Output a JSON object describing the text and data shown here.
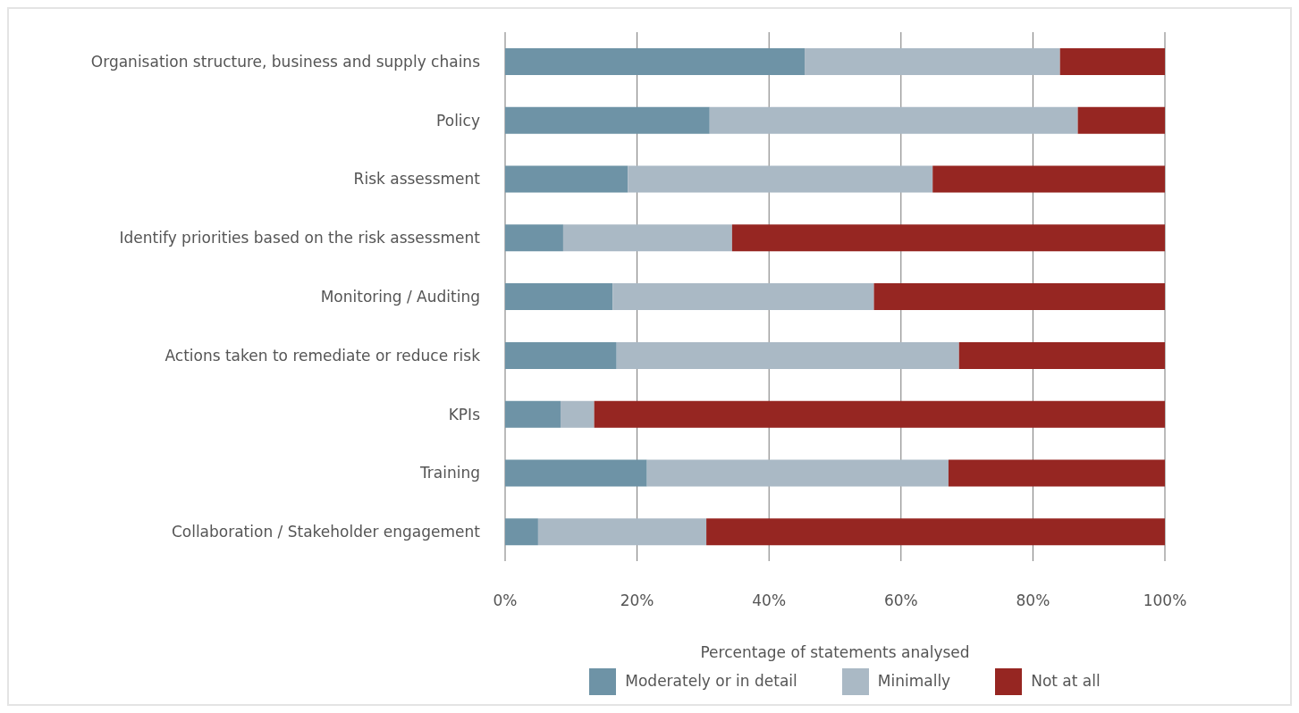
{
  "chart_data": {
    "type": "bar",
    "orientation": "horizontal",
    "stacked": true,
    "xlabel": "Percentage of statements analysed",
    "categories": [
      "Organisation structure, business and supply chains",
      "Policy",
      "Risk assessment",
      "Identify priorities based on the risk assessment",
      "Monitoring / Auditing",
      "Actions taken to remediate or reduce risk",
      "KPIs",
      "Training",
      "Collaboration / Stakeholder engagement"
    ],
    "series": [
      {
        "name": "Moderately or in detail",
        "color": "#6e93a6",
        "values": [
          45.4,
          31,
          18.6,
          8.8,
          16.3,
          16.9,
          8.4,
          21.5,
          5
        ]
      },
      {
        "name": "Minimally",
        "color": "#aab9c5",
        "values": [
          38.7,
          55.8,
          46.2,
          25.6,
          39.6,
          51.9,
          5.1,
          45.7,
          25.5
        ]
      },
      {
        "name": "Not at all",
        "color": "#962622",
        "values": [
          15.9,
          13.2,
          35.2,
          65.6,
          44.1,
          31.2,
          86.5,
          32.8,
          69.5
        ]
      }
    ],
    "xlim": [
      0,
      100
    ],
    "xticks": [
      {
        "value": 0,
        "label": "0%"
      },
      {
        "value": 20,
        "label": "20%"
      },
      {
        "value": 40,
        "label": "40%"
      },
      {
        "value": 60,
        "label": "60%"
      },
      {
        "value": 80,
        "label": "80%"
      },
      {
        "value": 100,
        "label": "100%"
      }
    ],
    "grid": "x",
    "legend": "bottom"
  }
}
